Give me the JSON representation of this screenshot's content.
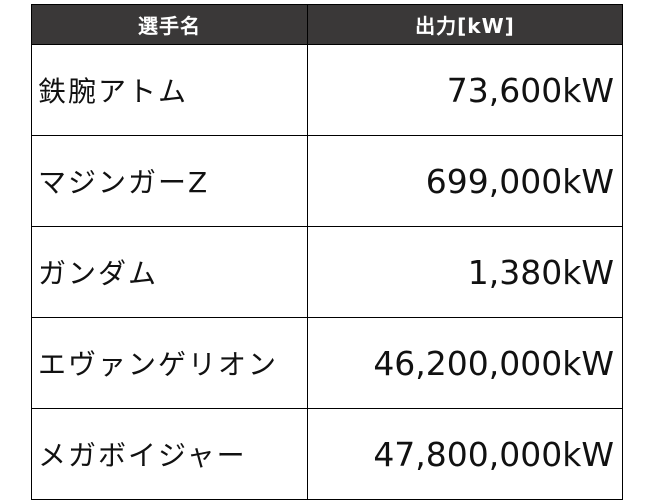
{
  "header": {
    "name_label": "選手名",
    "power_label": "出力[kW]"
  },
  "rows": [
    {
      "name": "鉄腕アトム",
      "power": "73,600kW"
    },
    {
      "name": "マジンガーZ",
      "power": "699,000kW"
    },
    {
      "name": "ガンダム",
      "power": "1,380kW"
    },
    {
      "name": "エヴァンゲリオン",
      "power": "46,200,000kW"
    },
    {
      "name": "メガボイジャー",
      "power": "47,800,000kW"
    }
  ],
  "colors": {
    "header_bg": "#3a3838",
    "header_text": "#ffffff",
    "border": "#000000"
  }
}
